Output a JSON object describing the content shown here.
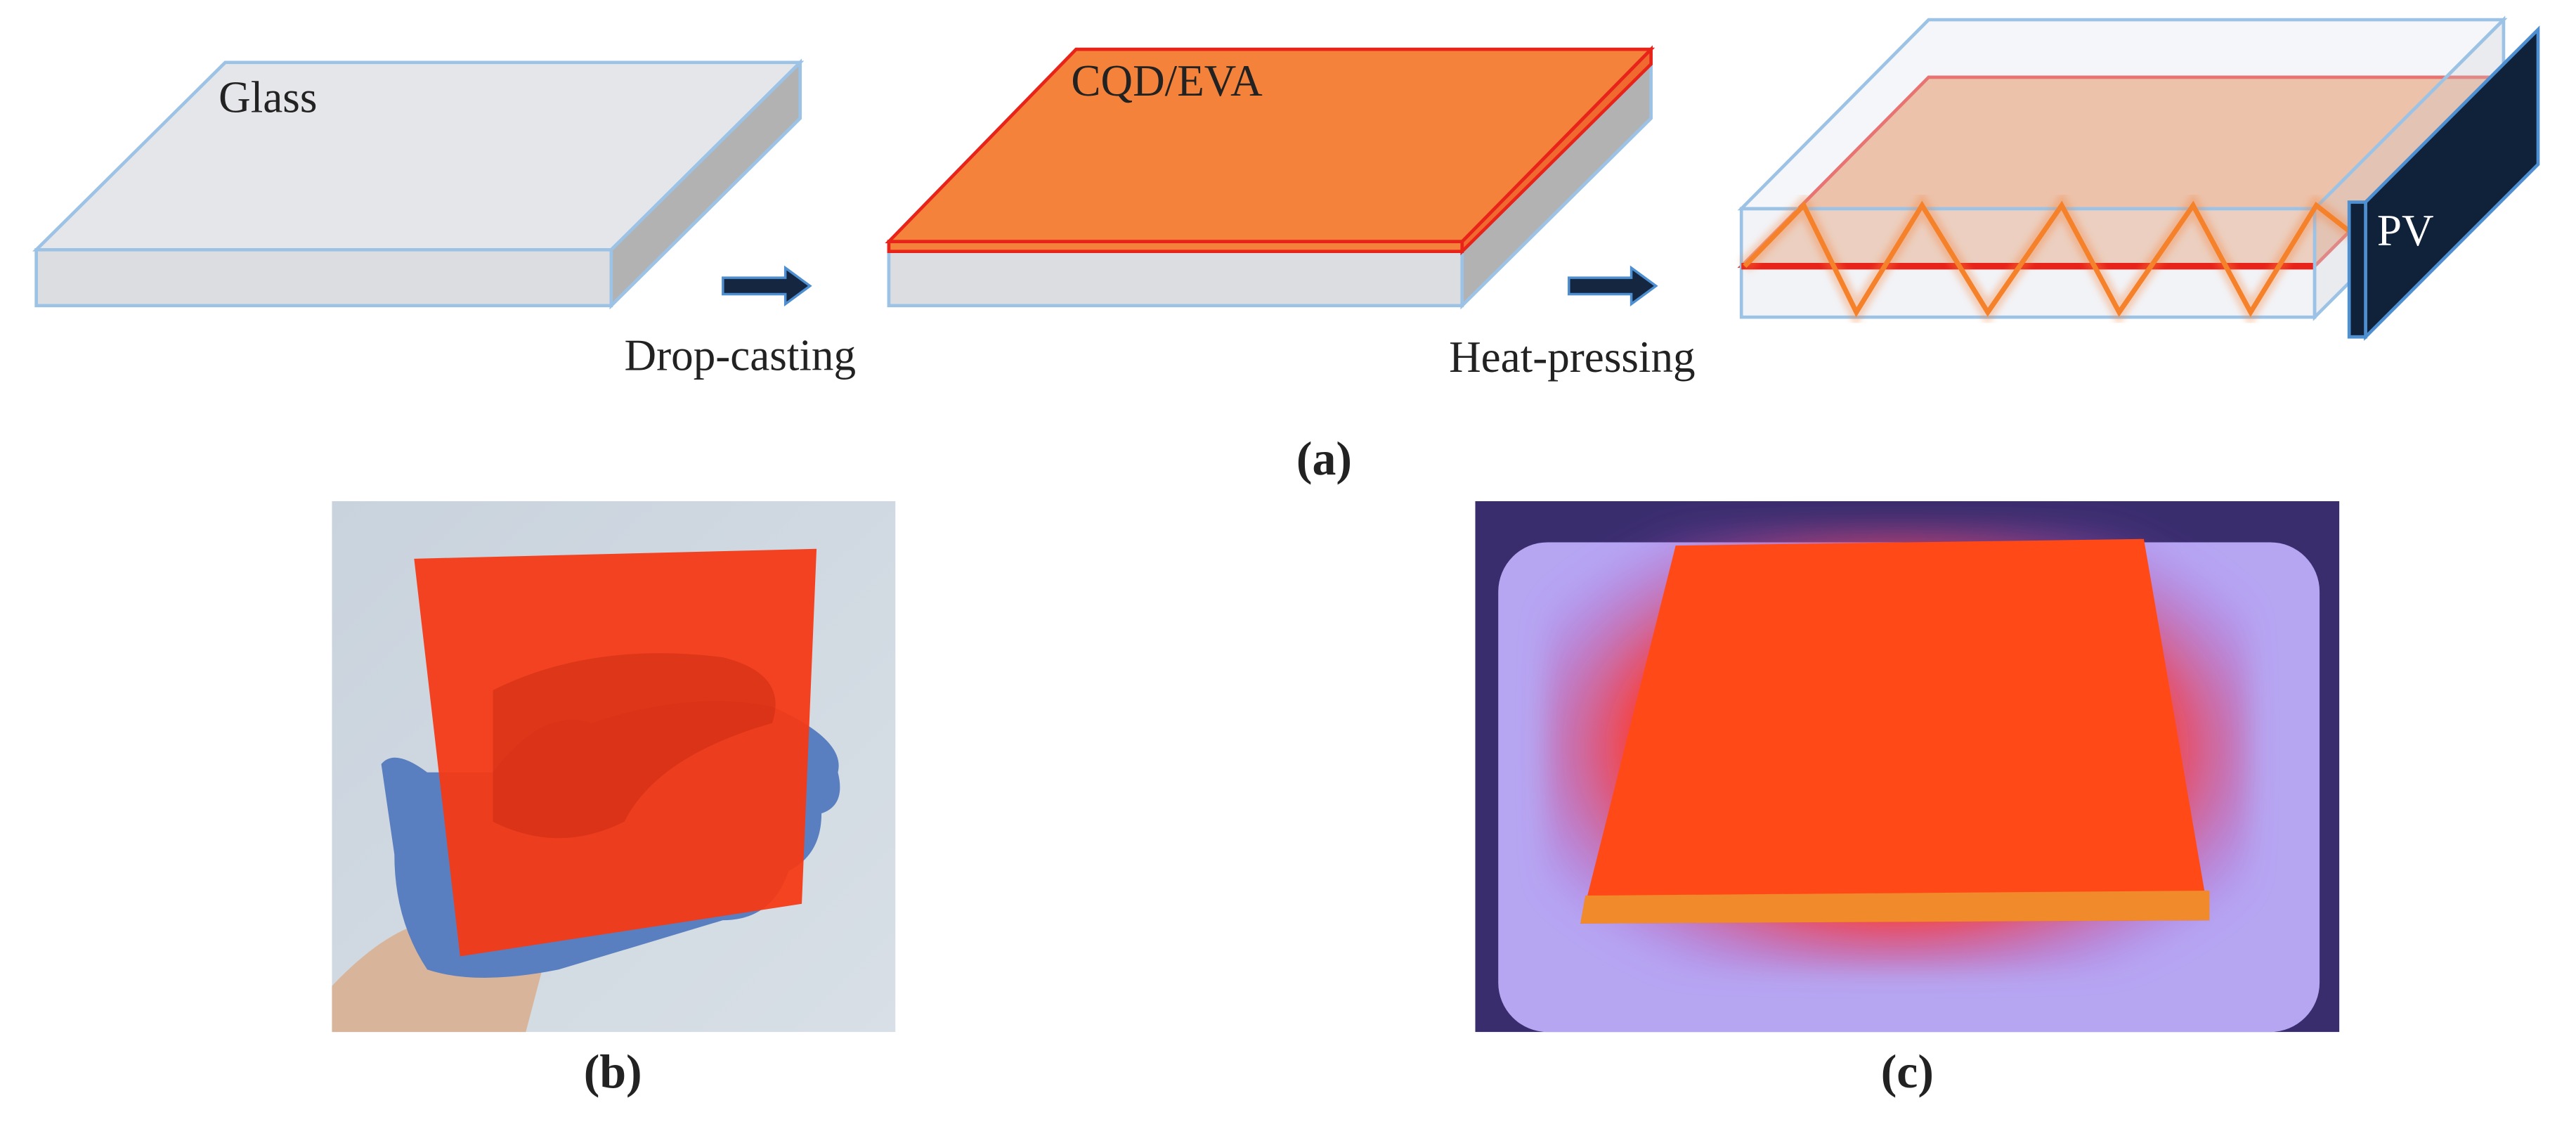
{
  "panel_a": {
    "slab_1_label": "Glass",
    "slab_2_label": "CQD/EVA",
    "step_1": "Drop-casting",
    "step_2": "Heat-pressing",
    "pv_label": "PV",
    "caption": "(a)"
  },
  "panel_b": {
    "caption": "(b)"
  },
  "panel_c": {
    "caption": "(c)"
  }
}
